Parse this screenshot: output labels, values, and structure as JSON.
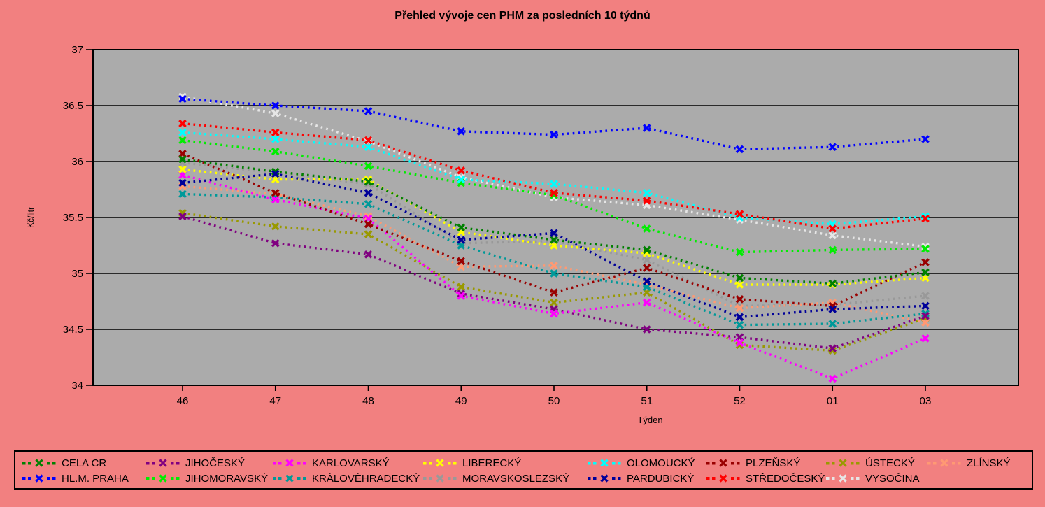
{
  "title": "Přehled vývoje cen PHM za posledních 10 týdnů",
  "chart_data": {
    "type": "line",
    "x_categories": [
      "46",
      "47",
      "48",
      "49",
      "50",
      "51",
      "52",
      "01",
      "03"
    ],
    "xlabel": "Týden",
    "ylabel": "Kč/litr",
    "ylim": [
      34,
      37
    ],
    "y_ticks": [
      37,
      36.5,
      36,
      35.5,
      35,
      34.5,
      34
    ],
    "grid": true,
    "legend_position": "bottom",
    "marker_style": "bold-x-on-dotted-line",
    "plot_bg_color": "#ABABAB",
    "page_bg_color": "#F28080",
    "series": [
      {
        "name": "CELA CR",
        "color": "#008000",
        "values": [
          36.02,
          35.91,
          35.82,
          35.41,
          35.3,
          35.21,
          34.96,
          34.91,
          35.01
        ]
      },
      {
        "name": "JIHOČESKÝ",
        "color": "#800080",
        "values": [
          35.51,
          35.27,
          35.17,
          34.82,
          34.68,
          34.5,
          34.43,
          34.33,
          34.62
        ]
      },
      {
        "name": "KARLOVARSKÝ",
        "color": "#FF00FF",
        "values": [
          35.88,
          35.66,
          35.49,
          34.8,
          34.64,
          34.74,
          34.38,
          34.06,
          34.42
        ]
      },
      {
        "name": "LIBERECKÝ",
        "color": "#FFFF00",
        "values": [
          35.93,
          35.84,
          35.84,
          35.37,
          35.25,
          35.18,
          34.9,
          34.9,
          34.96
        ]
      },
      {
        "name": "OLOMOUCKÝ",
        "color": "#00FFFF",
        "values": [
          36.26,
          36.2,
          36.13,
          35.84,
          35.8,
          35.72,
          35.5,
          35.44,
          35.51
        ]
      },
      {
        "name": "PLZEŇSKÝ",
        "color": "#990000",
        "values": [
          36.07,
          35.72,
          35.44,
          35.11,
          34.83,
          35.05,
          34.77,
          34.71,
          35.1
        ]
      },
      {
        "name": "ÚSTECKÝ",
        "color": "#999900",
        "values": [
          35.54,
          35.42,
          35.35,
          34.88,
          34.74,
          34.83,
          34.36,
          34.31,
          34.6
        ]
      },
      {
        "name": "ZLÍNSKÝ",
        "color": "#FF9973",
        "values": [
          35.78,
          35.71,
          35.51,
          35.06,
          35.07,
          34.9,
          34.69,
          34.74,
          34.56
        ]
      },
      {
        "name": "HL.M. PRAHA",
        "color": "#0000FF",
        "values": [
          36.56,
          36.5,
          36.45,
          36.27,
          36.24,
          36.3,
          36.11,
          36.13,
          36.2
        ]
      },
      {
        "name": "JIHOMORAVSKÝ",
        "color": "#00EE00",
        "values": [
          36.19,
          36.09,
          35.96,
          35.81,
          35.7,
          35.4,
          35.19,
          35.21,
          35.22
        ]
      },
      {
        "name": "KRÁLOVÉHRADECKÝ",
        "color": "#009999",
        "values": [
          35.71,
          35.68,
          35.62,
          35.25,
          35.0,
          34.88,
          34.54,
          34.55,
          34.64
        ]
      },
      {
        "name": "MORAVSKOSLEZSKÝ",
        "color": "#999999",
        "values": [
          35.99,
          35.9,
          35.8,
          35.27,
          35.29,
          35.12,
          34.71,
          34.72,
          34.8
        ]
      },
      {
        "name": "PARDUBICKÝ",
        "color": "#000099",
        "values": [
          35.81,
          35.89,
          35.72,
          35.3,
          35.36,
          34.93,
          34.61,
          34.68,
          34.71
        ]
      },
      {
        "name": "STŘEDOČESKÝ",
        "color": "#FF0000",
        "values": [
          36.34,
          36.26,
          36.19,
          35.92,
          35.72,
          35.65,
          35.53,
          35.4,
          35.49
        ]
      },
      {
        "name": "VYSOČINA",
        "color": "#E6E6E6",
        "values": [
          36.58,
          36.43,
          36.18,
          35.86,
          35.68,
          35.61,
          35.48,
          35.34,
          35.24
        ]
      }
    ]
  },
  "legend": {
    "rows": [
      [
        "CELA CR",
        "JIHOČESKÝ",
        "KARLOVARSKÝ",
        "LIBERECKÝ",
        "OLOMOUCKÝ",
        "PLZEŇSKÝ",
        "ÚSTECKÝ",
        "ZLÍNSKÝ"
      ],
      [
        "HL.M. PRAHA",
        "JIHOMORAVSKÝ",
        "KRÁLOVÉHRADECKÝ",
        "MORAVSKOSLEZSKÝ",
        "PARDUBICKÝ",
        "STŘEDOČESKÝ",
        "VYSOČINA"
      ]
    ]
  }
}
